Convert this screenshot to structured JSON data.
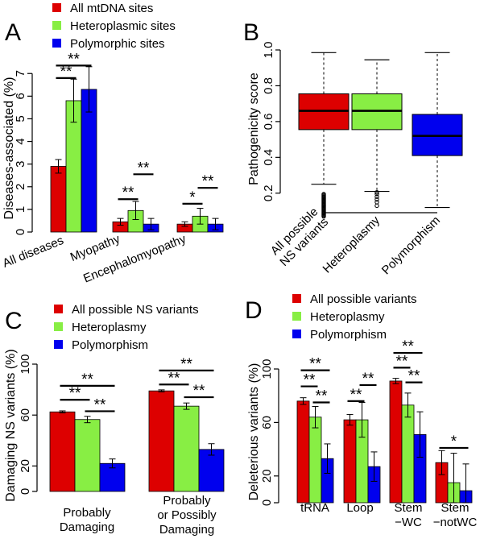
{
  "colors": {
    "red": "#dd0000",
    "green": "#88ee44",
    "blue": "#0000ee",
    "black": "#000000"
  },
  "chart_data": [
    {
      "panel": "A",
      "type": "bar",
      "ylabel": "Diseases-associated (%)",
      "ylim": [
        0,
        7.4
      ],
      "yticks": [
        0,
        1,
        2,
        3,
        4,
        5,
        6,
        7
      ],
      "categories": [
        "All diseases",
        "Myopathy",
        "Encephalomyopathy"
      ],
      "legend_position": "top",
      "series": [
        {
          "name": "All mtDNA sites",
          "color": "red",
          "values": [
            2.9,
            0.45,
            0.35
          ],
          "err": [
            0.3,
            0.15,
            0.1
          ]
        },
        {
          "name": "Heteroplasmic sites",
          "color": "green",
          "values": [
            5.8,
            0.95,
            0.7
          ],
          "err": [
            0.95,
            0.4,
            0.35
          ]
        },
        {
          "name": "Polymorphic sites",
          "color": "blue",
          "values": [
            6.3,
            0.35,
            0.35
          ],
          "err": [
            1.0,
            0.25,
            0.25
          ]
        }
      ],
      "significance": [
        {
          "group": 0,
          "from": 0,
          "to": 1,
          "y": 6.8,
          "label": "**"
        },
        {
          "group": 0,
          "from": 0,
          "to": 2,
          "y": 7.35,
          "label": "**"
        },
        {
          "group": 1,
          "from": 0,
          "to": 1,
          "y": 1.45,
          "label": "**"
        },
        {
          "group": 1,
          "from": 1,
          "to": 2,
          "y": 2.55,
          "label": "**"
        },
        {
          "group": 2,
          "from": 0,
          "to": 1,
          "y": 1.25,
          "label": "*"
        },
        {
          "group": 2,
          "from": 1,
          "to": 2,
          "y": 1.95,
          "label": "**"
        }
      ]
    },
    {
      "panel": "B",
      "type": "box",
      "ylabel": "Pathogenicity score",
      "ylim": [
        0.1,
        1.0
      ],
      "yticks": [
        0.2,
        0.4,
        0.6,
        0.8,
        1.0
      ],
      "ytick_labels": [
        "0.2",
        "0.4",
        "0.6",
        "0.8",
        "1.0"
      ],
      "categories": [
        "All possible\nNS variants",
        "Heteroplasmy",
        "Polymorphism"
      ],
      "boxes": [
        {
          "color": "red",
          "whisker_low": 0.25,
          "q1": 0.555,
          "median": 0.66,
          "q3": 0.755,
          "whisker_high": 0.985,
          "outliers": [
            0.07,
            0.075,
            0.08,
            0.085,
            0.09,
            0.095,
            0.1,
            0.105,
            0.11,
            0.115,
            0.12,
            0.125,
            0.13,
            0.135,
            0.14,
            0.145,
            0.15,
            0.155,
            0.16,
            0.165,
            0.17,
            0.175,
            0.18,
            0.185,
            0.19,
            0.195
          ]
        },
        {
          "color": "green",
          "whisker_low": 0.21,
          "q1": 0.555,
          "median": 0.66,
          "q3": 0.755,
          "whisker_high": 0.945,
          "outliers": [
            0.13,
            0.15,
            0.165,
            0.18,
            0.195,
            0.205
          ]
        },
        {
          "color": "blue",
          "whisker_low": 0.12,
          "q1": 0.41,
          "median": 0.52,
          "q3": 0.64,
          "whisker_high": 0.985,
          "outliers": []
        }
      ]
    },
    {
      "panel": "C",
      "type": "bar",
      "ylabel": "Damaging NS variants (%)",
      "ylim": [
        0,
        100
      ],
      "yticks": [
        0,
        20,
        60,
        100
      ],
      "categories": [
        "Probably\nDamaging",
        "Probably\nor Possibly\nDamaging"
      ],
      "legend_position": "top",
      "series": [
        {
          "name": "All possible NS variants",
          "color": "red",
          "values": [
            62.5,
            79
          ],
          "err": [
            0.8,
            0.8
          ]
        },
        {
          "name": "Heteroplasmy",
          "color": "green",
          "values": [
            56.5,
            67
          ],
          "err": [
            2.5,
            2.5
          ]
        },
        {
          "name": "Polymorphism",
          "color": "blue",
          "values": [
            22,
            33
          ],
          "err": [
            3.5,
            4.5
          ]
        }
      ],
      "significance": [
        {
          "group": 0,
          "from": 0,
          "to": 1,
          "y": 72,
          "label": "**"
        },
        {
          "group": 0,
          "from": 0,
          "to": 2,
          "y": 83,
          "label": "**"
        },
        {
          "group": 0,
          "from": 1,
          "to": 2,
          "y": 63,
          "label": "**"
        },
        {
          "group": 1,
          "from": 0,
          "to": 1,
          "y": 84,
          "label": "**"
        },
        {
          "group": 1,
          "from": 0,
          "to": 2,
          "y": 95,
          "label": "**"
        },
        {
          "group": 1,
          "from": 1,
          "to": 2,
          "y": 74,
          "label": "**"
        }
      ]
    },
    {
      "panel": "D",
      "type": "bar",
      "ylabel": "Deleterious variants (%)",
      "ylim": [
        0,
        100
      ],
      "yticks": [
        0,
        20,
        60,
        100
      ],
      "categories": [
        "tRNA",
        "Loop",
        "Stem\n−WC",
        "Stem\n−notWC"
      ],
      "legend_position": "top",
      "series": [
        {
          "name": "All possible variants",
          "color": "red",
          "values": [
            76,
            62,
            91,
            30
          ],
          "err": [
            2.5,
            4,
            2,
            9
          ]
        },
        {
          "name": "Heteroplasmy",
          "color": "green",
          "values": [
            64,
            62,
            73,
            15
          ],
          "err": [
            8,
            13,
            9,
            22
          ]
        },
        {
          "name": "Polymorphism",
          "color": "blue",
          "values": [
            33,
            27,
            51,
            9
          ],
          "err": [
            11,
            11,
            17,
            20
          ]
        }
      ],
      "significance": [
        {
          "group": 0,
          "from": 0,
          "to": 1,
          "y": 87,
          "label": "**"
        },
        {
          "group": 0,
          "from": 0,
          "to": 2,
          "y": 99,
          "label": "**"
        },
        {
          "group": 0,
          "from": 1,
          "to": 2,
          "y": 75,
          "label": "**"
        },
        {
          "group": 1,
          "from": 0,
          "to": 1,
          "y": 76,
          "label": "**"
        },
        {
          "group": 1,
          "from": 1,
          "to": 2,
          "y": 88,
          "label": "**"
        },
        {
          "group": 2,
          "from": 0,
          "to": 1,
          "y": 101,
          "label": "**"
        },
        {
          "group": 2,
          "from": 0,
          "to": 2,
          "y": 112,
          "label": "**"
        },
        {
          "group": 2,
          "from": 1,
          "to": 2,
          "y": 90,
          "label": "**"
        },
        {
          "group": 3,
          "from": 0,
          "to": 2,
          "y": 41,
          "label": "*"
        }
      ]
    }
  ]
}
